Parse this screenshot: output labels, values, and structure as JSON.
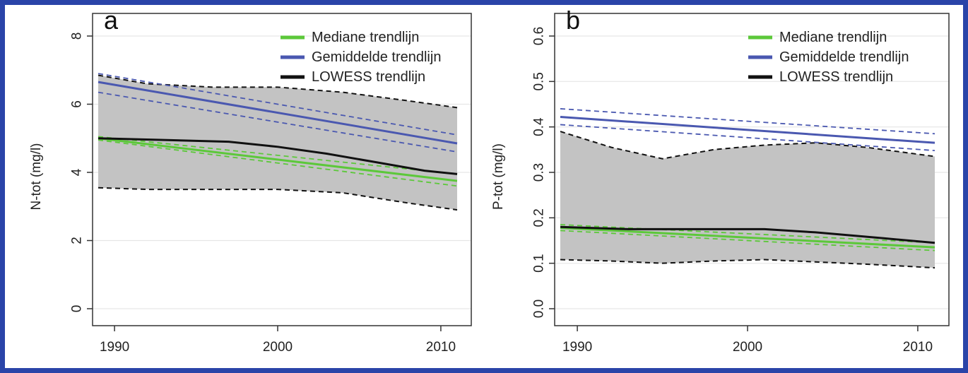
{
  "chart_data": [
    {
      "type": "line",
      "panel_label": "a",
      "title": "",
      "xlabel": "",
      "ylabel": "N-tot (mg/l)",
      "xlim": [
        1989,
        2011
      ],
      "ylim": [
        0,
        8
      ],
      "xticks": [
        1990,
        2000,
        2010
      ],
      "yticks": [
        0,
        2,
        4,
        6,
        8
      ],
      "legend_position": "top-right",
      "legend": [
        {
          "label": "Mediane trendlijn",
          "color": "#5cc83a"
        },
        {
          "label": "Gemiddelde trendlijn",
          "color": "#4a58b0"
        },
        {
          "label": "LOWESS trendlijn",
          "color": "#111111"
        }
      ],
      "band": {
        "color": "#c3c3c3",
        "x": [
          1989,
          1992,
          1996,
          2000,
          2004,
          2008,
          2011
        ],
        "upper": [
          6.85,
          6.6,
          6.5,
          6.5,
          6.35,
          6.1,
          5.9
        ],
        "lower": [
          3.55,
          3.5,
          3.5,
          3.5,
          3.4,
          3.1,
          2.9
        ]
      },
      "series": [
        {
          "role": "median",
          "color": "#5cc83a",
          "style": "solid",
          "x": [
            1989,
            2011
          ],
          "y": [
            5.0,
            3.75
          ]
        },
        {
          "role": "median-ci-upper",
          "color": "#5cc83a",
          "style": "dashed",
          "x": [
            1989,
            2011
          ],
          "y": [
            5.05,
            3.95
          ]
        },
        {
          "role": "median-ci-lower",
          "color": "#5cc83a",
          "style": "dashed",
          "x": [
            1989,
            2011
          ],
          "y": [
            4.95,
            3.6
          ]
        },
        {
          "role": "mean",
          "color": "#4a58b0",
          "style": "solid",
          "x": [
            1989,
            2011
          ],
          "y": [
            6.65,
            4.85
          ]
        },
        {
          "role": "mean-ci-upper",
          "color": "#4a58b0",
          "style": "dashed",
          "x": [
            1989,
            2011
          ],
          "y": [
            6.9,
            5.1
          ]
        },
        {
          "role": "mean-ci-lower",
          "color": "#4a58b0",
          "style": "dashed",
          "x": [
            1989,
            2011
          ],
          "y": [
            6.35,
            4.6
          ]
        },
        {
          "role": "lowess",
          "color": "#111111",
          "style": "solid",
          "x": [
            1989,
            1993,
            1997,
            2000,
            2003,
            2006,
            2009,
            2011
          ],
          "y": [
            5.0,
            4.95,
            4.9,
            4.75,
            4.55,
            4.3,
            4.05,
            3.95
          ]
        }
      ]
    },
    {
      "type": "line",
      "panel_label": "b",
      "title": "",
      "xlabel": "",
      "ylabel": "P-tot (mg/l)",
      "xlim": [
        1989,
        2011
      ],
      "ylim": [
        0,
        0.6
      ],
      "xticks": [
        1990,
        2000,
        2010
      ],
      "yticks": [
        0.0,
        0.1,
        0.2,
        0.3,
        0.4,
        0.5,
        0.6
      ],
      "legend_position": "top-right",
      "legend": [
        {
          "label": "Mediane trendlijn",
          "color": "#5cc83a"
        },
        {
          "label": "Gemiddelde trendlijn",
          "color": "#4a58b0"
        },
        {
          "label": "LOWESS trendlijn",
          "color": "#111111"
        }
      ],
      "band": {
        "color": "#c3c3c3",
        "x": [
          1989,
          1992,
          1995,
          1998,
          2001,
          2004,
          2007,
          2011
        ],
        "upper": [
          0.39,
          0.355,
          0.33,
          0.35,
          0.36,
          0.365,
          0.355,
          0.335
        ],
        "lower": [
          0.108,
          0.105,
          0.1,
          0.105,
          0.108,
          0.103,
          0.098,
          0.09
        ]
      },
      "series": [
        {
          "role": "median",
          "color": "#5cc83a",
          "style": "solid",
          "x": [
            1989,
            2011
          ],
          "y": [
            0.178,
            0.135
          ]
        },
        {
          "role": "median-ci-upper",
          "color": "#5cc83a",
          "style": "dashed",
          "x": [
            1989,
            2011
          ],
          "y": [
            0.185,
            0.145
          ]
        },
        {
          "role": "median-ci-lower",
          "color": "#5cc83a",
          "style": "dashed",
          "x": [
            1989,
            2011
          ],
          "y": [
            0.172,
            0.128
          ]
        },
        {
          "role": "mean",
          "color": "#4a58b0",
          "style": "solid",
          "x": [
            1989,
            2011
          ],
          "y": [
            0.422,
            0.365
          ]
        },
        {
          "role": "mean-ci-upper",
          "color": "#4a58b0",
          "style": "dashed",
          "x": [
            1989,
            2011
          ],
          "y": [
            0.44,
            0.385
          ]
        },
        {
          "role": "mean-ci-lower",
          "color": "#4a58b0",
          "style": "dashed",
          "x": [
            1989,
            2011
          ],
          "y": [
            0.405,
            0.348
          ]
        },
        {
          "role": "lowess",
          "color": "#111111",
          "style": "solid",
          "x": [
            1989,
            1993,
            1997,
            2001,
            2004,
            2008,
            2011
          ],
          "y": [
            0.18,
            0.175,
            0.175,
            0.175,
            0.168,
            0.155,
            0.145
          ]
        }
      ]
    }
  ]
}
